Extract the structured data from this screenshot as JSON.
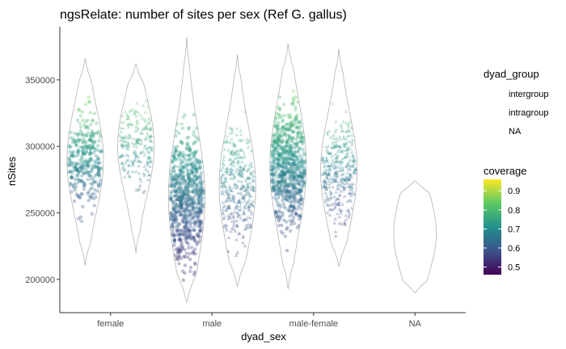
{
  "chart_data": {
    "type": "violin",
    "title": "ngsRelate: number of sites per sex (Ref G. gallus)",
    "xlabel": "dyad_sex",
    "ylabel": "nSites",
    "categories": [
      "female",
      "male",
      "male-female",
      "NA"
    ],
    "yticks": [
      200000,
      250000,
      300000,
      350000
    ],
    "ytick_labels": [
      "200000",
      "250000",
      "300000",
      "350000"
    ],
    "ylim": [
      175000,
      390000
    ],
    "grid": false,
    "legend_placement": "right",
    "legend_shape": {
      "title": "dyad_group",
      "entries": [
        "intergroup",
        "intragroup",
        "NA"
      ]
    },
    "legend_color": {
      "title": "coverage",
      "colormap": "viridis",
      "range": [
        0.46,
        0.96
      ],
      "ticks": [
        0.5,
        0.6,
        0.7,
        0.8,
        0.9
      ],
      "tick_labels": [
        "0.5",
        "0.6",
        "0.7",
        "0.8",
        "0.9"
      ]
    },
    "violins": [
      {
        "category": "female",
        "group": "intergroup",
        "offset": -0.25,
        "min": 211000,
        "max": 366000,
        "median": 290000
      },
      {
        "category": "female",
        "group": "intragroup",
        "offset": 0.25,
        "min": 220000,
        "max": 362000,
        "median": 300000
      },
      {
        "category": "male",
        "group": "intergroup",
        "offset": -0.25,
        "min": 183000,
        "max": 382000,
        "median": 262000
      },
      {
        "category": "male",
        "group": "intragroup",
        "offset": 0.25,
        "min": 195000,
        "max": 369000,
        "median": 270000
      },
      {
        "category": "male-female",
        "group": "intergroup",
        "offset": -0.25,
        "min": 193000,
        "max": 377000,
        "median": 285000
      },
      {
        "category": "male-female",
        "group": "intragroup",
        "offset": 0.25,
        "min": 210000,
        "max": 373000,
        "median": 282000
      },
      {
        "category": "NA",
        "group": "NA",
        "offset": 0,
        "min": 190000,
        "max": 274000,
        "median": 235000
      }
    ],
    "colors": {
      "violin_outline": "#b3b3b3",
      "axis": "#333333",
      "viridis": [
        "#440154",
        "#3b528b",
        "#21908c",
        "#5dc963",
        "#fde725"
      ]
    }
  }
}
